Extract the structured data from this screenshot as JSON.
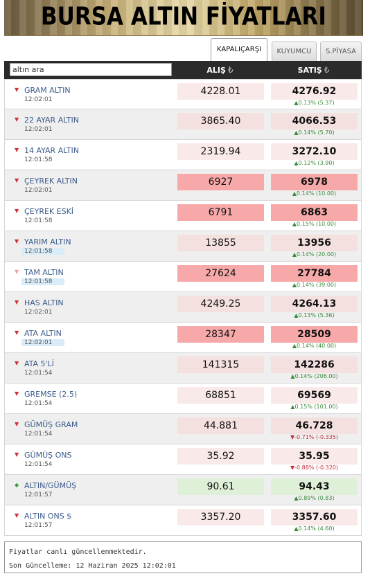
{
  "banner": {
    "title": "BURSA ALTIN FİYATLARI"
  },
  "tabs": [
    {
      "label": "KAPALIÇARŞI",
      "active": true
    },
    {
      "label": "KUYUMCU",
      "active": false
    },
    {
      "label": "S.PİYASA",
      "active": false
    }
  ],
  "header": {
    "search_value": "altın ara",
    "buy_label": "ALIŞ",
    "sell_label": "SATIŞ",
    "currency": "₺"
  },
  "rows": [
    {
      "name": "GRAM ALTIN",
      "time": "12:02:01",
      "buy": "4228.01",
      "sell": "4276.92",
      "change": "▲0.13% (5.37)",
      "dir": "up",
      "style": "light",
      "alt": false,
      "time_hl": false,
      "arrow": "down",
      "arrow_color": "#d0303a"
    },
    {
      "name": "22 AYAR ALTIN",
      "time": "12:02:01",
      "buy": "3865.40",
      "sell": "4066.53",
      "change": "▲0.14% (5.70)",
      "dir": "up",
      "style": "normal",
      "alt": true,
      "time_hl": false,
      "arrow": "down",
      "arrow_color": "#d0303a"
    },
    {
      "name": "14 AYAR ALTIN",
      "time": "12:01:58",
      "buy": "2319.94",
      "sell": "3272.10",
      "change": "▲0.12% (3.90)",
      "dir": "up",
      "style": "light",
      "alt": false,
      "time_hl": false,
      "arrow": "down",
      "arrow_color": "#d0303a"
    },
    {
      "name": "ÇEYREK ALTIN",
      "time": "12:02:01",
      "buy": "6927",
      "sell": "6978",
      "change": "▲0.14% (10.00)",
      "dir": "up",
      "style": "strong",
      "alt": true,
      "time_hl": false,
      "arrow": "down",
      "arrow_color": "#d0303a"
    },
    {
      "name": "ÇEYREK ESKİ",
      "time": "12:01:58",
      "buy": "6791",
      "sell": "6863",
      "change": "▲0.15% (10.00)",
      "dir": "up",
      "style": "strong",
      "alt": false,
      "time_hl": false,
      "arrow": "down",
      "arrow_color": "#d0303a"
    },
    {
      "name": "YARIM ALTIN",
      "time": "12:01:58",
      "buy": "13855",
      "sell": "13956",
      "change": "▲0.14% (20.00)",
      "dir": "up",
      "style": "normal",
      "alt": true,
      "time_hl": true,
      "arrow": "down",
      "arrow_color": "#d0303a"
    },
    {
      "name": "TAM ALTIN",
      "time": "12:01:58",
      "buy": "27624",
      "sell": "27784",
      "change": "▲0.14% (39.00)",
      "dir": "up",
      "style": "strong",
      "alt": false,
      "time_hl": true,
      "arrow": "down",
      "arrow_color": "#f0a0a8"
    },
    {
      "name": "HAS ALTIN",
      "time": "12:02:01",
      "buy": "4249.25",
      "sell": "4264.13",
      "change": "▲0.13% (5.36)",
      "dir": "up",
      "style": "normal",
      "alt": true,
      "time_hl": false,
      "arrow": "down",
      "arrow_color": "#d0303a"
    },
    {
      "name": "ATA ALTIN",
      "time": "12:02:01",
      "buy": "28347",
      "sell": "28509",
      "change": "▲0.14% (40.00)",
      "dir": "up",
      "style": "strong",
      "alt": false,
      "time_hl": true,
      "arrow": "down",
      "arrow_color": "#d0303a"
    },
    {
      "name": "ATA 5'Lİ",
      "time": "12:01:54",
      "buy": "141315",
      "sell": "142286",
      "change": "▲0.14% (206.00)",
      "dir": "up",
      "style": "normal",
      "alt": true,
      "time_hl": false,
      "arrow": "down",
      "arrow_color": "#d0303a"
    },
    {
      "name": "GREMSE (2.5)",
      "time": "12:01:54",
      "buy": "68851",
      "sell": "69569",
      "change": "▲0.15% (101.00)",
      "dir": "up",
      "style": "light",
      "alt": false,
      "time_hl": false,
      "arrow": "down",
      "arrow_color": "#d0303a"
    },
    {
      "name": "GÜMÜŞ GRAM",
      "time": "12:01:54",
      "buy": "44.881",
      "sell": "46.728",
      "change": "▼-0.71% (-0.335)",
      "dir": "down",
      "style": "normal",
      "alt": true,
      "time_hl": false,
      "arrow": "down",
      "arrow_color": "#d0303a"
    },
    {
      "name": "GÜMÜŞ ONS",
      "time": "12:01:54",
      "buy": "35.92",
      "sell": "35.95",
      "change": "▼-0.88% (-0.320)",
      "dir": "down",
      "style": "light",
      "alt": false,
      "time_hl": false,
      "arrow": "down",
      "arrow_color": "#d0303a"
    },
    {
      "name": "ALTIN/GÜMÜŞ",
      "time": "12:01:57",
      "buy": "90.61",
      "sell": "94.43",
      "change": "▲0.89% (0.83)",
      "dir": "up",
      "style": "green",
      "alt": true,
      "time_hl": false,
      "arrow": "up",
      "arrow_color": "#3a9a3a"
    },
    {
      "name": "ALTIN ONS $",
      "time": "12:01:57",
      "buy": "3357.20",
      "sell": "3357.60",
      "change": "▲0.14% (4.60)",
      "dir": "up",
      "style": "light",
      "alt": false,
      "time_hl": false,
      "arrow": "down",
      "arrow_color": "#d0303a"
    }
  ],
  "footer": {
    "line1": "Fiyatlar canlı güncellenmektedir.",
    "line2": "Son Güncelleme: 12 Haziran 2025 12:02:01"
  }
}
